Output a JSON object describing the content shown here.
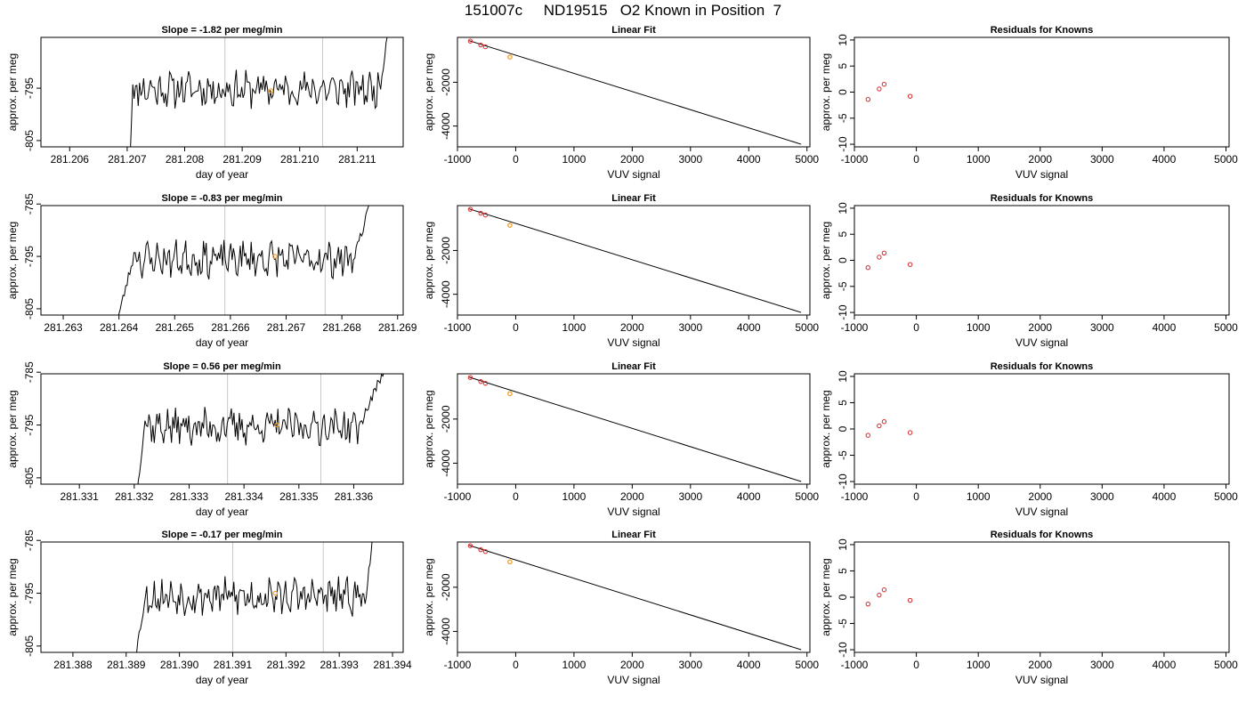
{
  "title": "151007c     ND19515   O2 Known in Position  7",
  "colors": {
    "trace": "#000000",
    "axis": "#000000",
    "vline": "#c8c8c8",
    "point": "#d62728",
    "highlight": "#f0a030"
  },
  "chart_data": [
    {
      "type": "line",
      "title": "Slope =  -1.82  per meg/min",
      "xlabel": "day of year",
      "ylabel": "approx. per meg",
      "xlim": [
        281.2055,
        281.2118
      ],
      "ylim": [
        -806.2,
        -785.3
      ],
      "xticks": [
        281.206,
        281.207,
        281.208,
        281.209,
        281.21,
        281.211
      ],
      "xtick_labels": [
        "281.206",
        "281.207",
        "281.208",
        "281.209",
        "281.210",
        "281.211"
      ],
      "yticks": [
        -805,
        -795
      ],
      "ytick_labels": [
        "-805",
        "-795"
      ],
      "vlines": [
        281.2087,
        281.2104
      ],
      "highlight": [
        281.2095,
        -795.5
      ],
      "trace_start": 281.20705,
      "trace_end": 281.21155,
      "flat_start": 281.2071,
      "flat_end": 281.2114,
      "trace_level": -795.2,
      "seed": 11
    },
    {
      "type": "scatter",
      "title": "Linear Fit",
      "xlabel": "VUV signal",
      "ylabel": "approx. per meg",
      "xlim": [
        -1000,
        5050
      ],
      "ylim": [
        -4950,
        50
      ],
      "xticks": [
        -1000,
        0,
        1000,
        2000,
        3000,
        4000,
        5000
      ],
      "xtick_labels": [
        "-1000",
        "0",
        "1000",
        "2000",
        "3000",
        "4000",
        "5000"
      ],
      "yticks": [
        -4000,
        -2000
      ],
      "ytick_labels": [
        "-4000",
        "-2000"
      ],
      "points": [
        [
          -780,
          -120
        ],
        [
          -600,
          -300
        ],
        [
          -520,
          -380
        ]
      ],
      "highlight": [
        -100,
        -850
      ],
      "fit_line": [
        [
          -800,
          -100
        ],
        [
          4900,
          -4830
        ]
      ]
    },
    {
      "type": "scatter",
      "title": "Residuals for Knowns",
      "xlabel": "VUV signal",
      "ylabel": "approx. per meg",
      "xlim": [
        -1000,
        5050
      ],
      "ylim": [
        -10.5,
        10.5
      ],
      "xticks": [
        -1000,
        0,
        1000,
        2000,
        3000,
        4000,
        5000
      ],
      "xtick_labels": [
        "-1000",
        "0",
        "1000",
        "2000",
        "3000",
        "4000",
        "5000"
      ],
      "yticks": [
        -10,
        -5,
        0,
        5,
        10
      ],
      "ytick_labels": [
        "-10",
        "-5",
        "0",
        "5",
        "10"
      ],
      "points": [
        [
          -780,
          -1.4
        ],
        [
          -600,
          0.6
        ],
        [
          -520,
          1.5
        ],
        [
          -100,
          -0.8
        ]
      ]
    },
    {
      "type": "line",
      "title": "Slope =  -0.83  per meg/min",
      "xlabel": "day of year",
      "ylabel": "approx. per meg",
      "xlim": [
        281.2626,
        281.2691
      ],
      "ylim": [
        -806.2,
        -785.3
      ],
      "xticks": [
        281.263,
        281.264,
        281.265,
        281.266,
        281.267,
        281.268,
        281.269
      ],
      "xtick_labels": [
        "281.263",
        "281.264",
        "281.265",
        "281.266",
        "281.267",
        "281.268",
        "281.269"
      ],
      "yticks": [
        -805,
        -795,
        -785
      ],
      "ytick_labels": [
        "-805",
        "-795",
        "-785"
      ],
      "vlines": [
        281.2659,
        281.2677
      ],
      "highlight": [
        281.2668,
        -795.0
      ],
      "trace_start": 281.26395,
      "trace_end": 281.2686,
      "flat_start": 281.2643,
      "flat_end": 281.2682,
      "trace_level": -795.5,
      "seed": 23
    },
    {
      "type": "scatter",
      "title": "Linear Fit",
      "xlabel": "VUV signal",
      "ylabel": "approx. per meg",
      "xlim": [
        -1000,
        5050
      ],
      "ylim": [
        -4950,
        50
      ],
      "xticks": [
        -1000,
        0,
        1000,
        2000,
        3000,
        4000,
        5000
      ],
      "xtick_labels": [
        "-1000",
        "0",
        "1000",
        "2000",
        "3000",
        "4000",
        "5000"
      ],
      "yticks": [
        -4000,
        -2000
      ],
      "ytick_labels": [
        "-4000",
        "-2000"
      ],
      "points": [
        [
          -780,
          -120
        ],
        [
          -600,
          -300
        ],
        [
          -520,
          -380
        ]
      ],
      "highlight": [
        -100,
        -850
      ],
      "fit_line": [
        [
          -800,
          -100
        ],
        [
          4900,
          -4830
        ]
      ]
    },
    {
      "type": "scatter",
      "title": "Residuals for Knowns",
      "xlabel": "VUV signal",
      "ylabel": "approx. per meg",
      "xlim": [
        -1000,
        5050
      ],
      "ylim": [
        -10.5,
        10.5
      ],
      "xticks": [
        -1000,
        0,
        1000,
        2000,
        3000,
        4000,
        5000
      ],
      "xtick_labels": [
        "-1000",
        "0",
        "1000",
        "2000",
        "3000",
        "4000",
        "5000"
      ],
      "yticks": [
        -10,
        -5,
        0,
        5,
        10
      ],
      "ytick_labels": [
        "-10",
        "-5",
        "0",
        "5",
        "10"
      ],
      "points": [
        [
          -780,
          -1.4
        ],
        [
          -600,
          0.6
        ],
        [
          -520,
          1.4
        ],
        [
          -100,
          -0.8
        ]
      ]
    },
    {
      "type": "line",
      "title": "Slope =  0.56  per meg/min",
      "xlabel": "day of year",
      "ylabel": "approx. per meg",
      "xlim": [
        281.3303,
        281.3369
      ],
      "ylim": [
        -806.2,
        -785.3
      ],
      "xticks": [
        281.331,
        281.332,
        281.333,
        281.334,
        281.335,
        281.336
      ],
      "xtick_labels": [
        "281.331",
        "281.332",
        "281.333",
        "281.334",
        "281.335",
        "281.336"
      ],
      "yticks": [
        -805,
        -795,
        -785
      ],
      "ytick_labels": [
        "-805",
        "-795",
        "-785"
      ],
      "vlines": [
        281.3337,
        281.3354
      ],
      "highlight": [
        281.3346,
        -795.0
      ],
      "trace_start": 281.33205,
      "trace_end": 281.33665,
      "flat_start": 281.3322,
      "flat_end": 281.3361,
      "trace_level": -795.3,
      "seed": 37
    },
    {
      "type": "scatter",
      "title": "Linear Fit",
      "xlabel": "VUV signal",
      "ylabel": "approx. per meg",
      "xlim": [
        -1000,
        5050
      ],
      "ylim": [
        -4950,
        50
      ],
      "xticks": [
        -1000,
        0,
        1000,
        2000,
        3000,
        4000,
        5000
      ],
      "xtick_labels": [
        "-1000",
        "0",
        "1000",
        "2000",
        "3000",
        "4000",
        "5000"
      ],
      "yticks": [
        -4000,
        -2000
      ],
      "ytick_labels": [
        "-4000",
        "-2000"
      ],
      "points": [
        [
          -780,
          -120
        ],
        [
          -600,
          -300
        ],
        [
          -520,
          -380
        ]
      ],
      "highlight": [
        -100,
        -850
      ],
      "fit_line": [
        [
          -800,
          -100
        ],
        [
          4900,
          -4830
        ]
      ]
    },
    {
      "type": "scatter",
      "title": "Residuals for Knowns",
      "xlabel": "VUV signal",
      "ylabel": "approx. per meg",
      "xlim": [
        -1000,
        5050
      ],
      "ylim": [
        -10.5,
        10.5
      ],
      "xticks": [
        -1000,
        0,
        1000,
        2000,
        3000,
        4000,
        5000
      ],
      "xtick_labels": [
        "-1000",
        "0",
        "1000",
        "2000",
        "3000",
        "4000",
        "5000"
      ],
      "yticks": [
        -10,
        -5,
        0,
        5,
        10
      ],
      "ytick_labels": [
        "-10",
        "-5",
        "0",
        "5",
        "10"
      ],
      "points": [
        [
          -780,
          -1.2
        ],
        [
          -600,
          0.6
        ],
        [
          -520,
          1.4
        ],
        [
          -100,
          -0.7
        ]
      ]
    },
    {
      "type": "line",
      "title": "Slope =  -0.17  per meg/min",
      "xlabel": "day of year",
      "ylabel": "approx. per meg",
      "xlim": [
        281.3874,
        281.3942
      ],
      "ylim": [
        -806.2,
        -785.3
      ],
      "xticks": [
        281.388,
        281.389,
        281.39,
        281.391,
        281.392,
        281.393,
        281.394
      ],
      "xtick_labels": [
        "281.388",
        "281.389",
        "281.390",
        "281.391",
        "281.392",
        "281.393",
        "281.394"
      ],
      "yticks": [
        -805,
        -795,
        -785
      ],
      "ytick_labels": [
        "-805",
        "-795",
        "-785"
      ],
      "vlines": [
        281.391,
        281.3927
      ],
      "highlight": [
        281.3918,
        -795.0
      ],
      "trace_start": 281.38915,
      "trace_end": 281.39365,
      "flat_start": 281.3894,
      "flat_end": 281.3935,
      "trace_level": -795.6,
      "seed": 53
    },
    {
      "type": "scatter",
      "title": "Linear Fit",
      "xlabel": "VUV signal",
      "ylabel": "approx. per meg",
      "xlim": [
        -1000,
        5050
      ],
      "ylim": [
        -4950,
        50
      ],
      "xticks": [
        -1000,
        0,
        1000,
        2000,
        3000,
        4000,
        5000
      ],
      "xtick_labels": [
        "-1000",
        "0",
        "1000",
        "2000",
        "3000",
        "4000",
        "5000"
      ],
      "yticks": [
        -4000,
        -2000
      ],
      "ytick_labels": [
        "-4000",
        "-2000"
      ],
      "points": [
        [
          -780,
          -120
        ],
        [
          -600,
          -300
        ],
        [
          -520,
          -380
        ]
      ],
      "highlight": [
        -100,
        -850
      ],
      "fit_line": [
        [
          -800,
          -100
        ],
        [
          4900,
          -4830
        ]
      ]
    },
    {
      "type": "scatter",
      "title": "Residuals for Knowns",
      "xlabel": "VUV signal",
      "ylabel": "approx. per meg",
      "xlim": [
        -1000,
        5050
      ],
      "ylim": [
        -10.5,
        10.5
      ],
      "xticks": [
        -1000,
        0,
        1000,
        2000,
        3000,
        4000,
        5000
      ],
      "xtick_labels": [
        "-1000",
        "0",
        "1000",
        "2000",
        "3000",
        "4000",
        "5000"
      ],
      "yticks": [
        -10,
        -5,
        0,
        5,
        10
      ],
      "ytick_labels": [
        "-10",
        "-5",
        "0",
        "5",
        "10"
      ],
      "points": [
        [
          -780,
          -1.3
        ],
        [
          -600,
          0.4
        ],
        [
          -520,
          1.4
        ],
        [
          -100,
          -0.6
        ]
      ]
    }
  ]
}
